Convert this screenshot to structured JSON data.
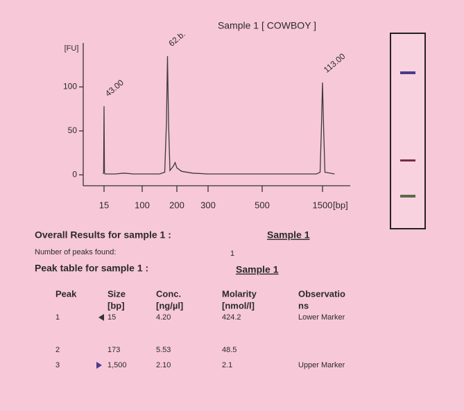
{
  "chart_data": {
    "type": "line",
    "title": "Sample 1 [ COWBOY ]",
    "ylabel": "[FU]",
    "x_unit": "[bp]",
    "x": [
      13,
      14,
      14.5,
      15,
      15.5,
      16,
      17,
      40,
      60,
      80,
      150,
      165,
      170,
      173,
      176,
      180,
      190,
      195,
      200,
      215,
      250,
      300,
      500,
      1400,
      1460,
      1480,
      1500,
      1520,
      1540,
      1700
    ],
    "values": [
      1,
      3,
      40,
      78,
      40,
      3,
      1,
      1,
      2,
      1,
      1,
      3,
      60,
      135,
      60,
      5,
      10,
      14,
      8,
      4,
      2,
      1,
      1,
      1,
      3,
      50,
      105,
      50,
      3,
      1
    ],
    "color": "#3a3a3a",
    "ylim": [
      -10,
      150
    ],
    "yticks": [
      0,
      50,
      100
    ],
    "xticks": [
      15,
      100,
      200,
      300,
      500,
      1500
    ],
    "peak_labels": [
      "43.00",
      "62.b.",
      "113.00"
    ]
  },
  "results": {
    "overall_title": "Overall Results for sample 1 :",
    "overall_sample": "Sample 1",
    "peaks_found_label": "Number of peaks found:",
    "peaks_found": "1",
    "peak_table_title": "Peak table for sample 1 :",
    "peak_table_sample": "Sample 1"
  },
  "table": {
    "header": [
      [
        "Peak"
      ],
      [
        "Size",
        "[bp]"
      ],
      [
        "Conc.",
        "[ng/µl]"
      ],
      [
        "Molarity",
        "[nmol/l]"
      ],
      [
        "Observatio",
        "ns"
      ]
    ],
    "rows": [
      [
        "1",
        "15",
        "4.20",
        "424.2",
        "Lower Marker"
      ],
      [
        "2",
        "173",
        "5.53",
        "48.5"
      ],
      [
        "3",
        "1,500",
        "2.10",
        "2.1",
        "Upper Marker"
      ]
    ]
  }
}
